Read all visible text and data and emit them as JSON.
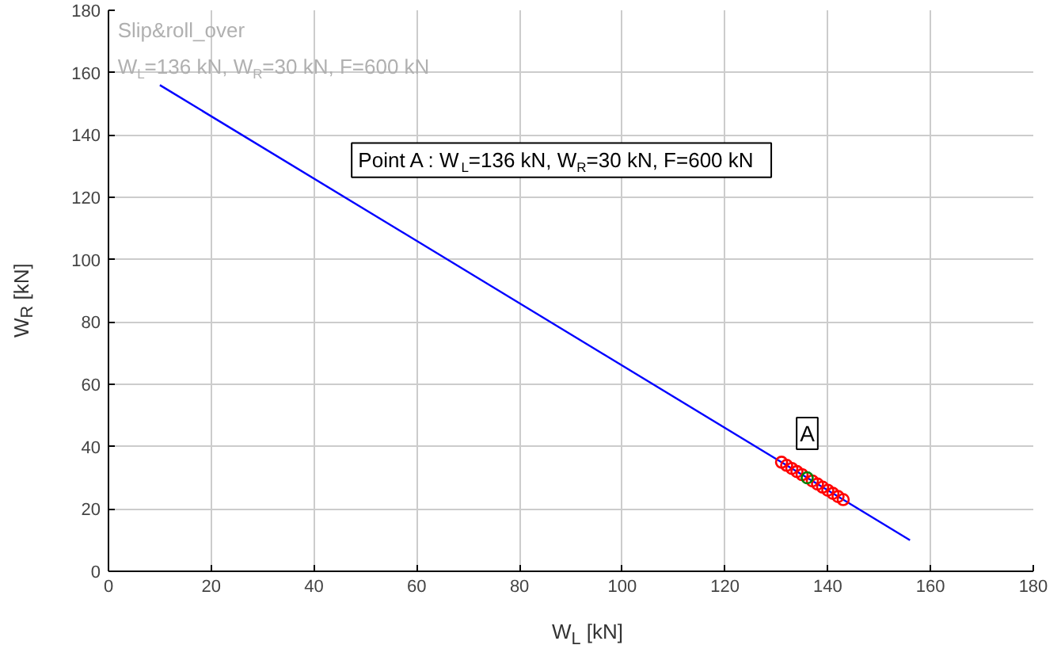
{
  "chart_data": {
    "type": "line",
    "xlabel": "W$_{L}$ [kN]",
    "ylabel": "W$_{R}$ [kN]",
    "xlim": [
      0,
      180
    ],
    "ylim": [
      0,
      180
    ],
    "xticks": [
      0,
      20,
      40,
      60,
      80,
      100,
      120,
      140,
      160,
      180
    ],
    "yticks": [
      0,
      20,
      40,
      60,
      80,
      100,
      120,
      140,
      160,
      180
    ],
    "grid": true,
    "series": [
      {
        "color": "#0000ff",
        "x": [
          10,
          156
        ],
        "values": [
          156,
          10
        ],
        "marker": "none"
      },
      {
        "type": "scatter",
        "color": "#ff0000",
        "x": [
          131,
          132,
          133,
          134,
          135,
          137,
          138,
          139,
          140,
          141,
          142,
          143
        ],
        "values": [
          35,
          34,
          33,
          32,
          31,
          29,
          28,
          27,
          26,
          25,
          24,
          23
        ],
        "marker": "circle"
      },
      {
        "type": "scatter",
        "color": "#008000",
        "x": [
          136
        ],
        "values": [
          30
        ],
        "marker": "circle"
      }
    ],
    "annotations": [
      "Slip&roll_over",
      "W$_{L}$=136 kN, W$_{R}$=30 kN, F=600 kN",
      "Point A : W$_{L}$=136 kN, W$_{R}$=30 kN, F=600 kN",
      {
        "text": "A",
        "x": 136,
        "y": 30
      }
    ]
  }
}
